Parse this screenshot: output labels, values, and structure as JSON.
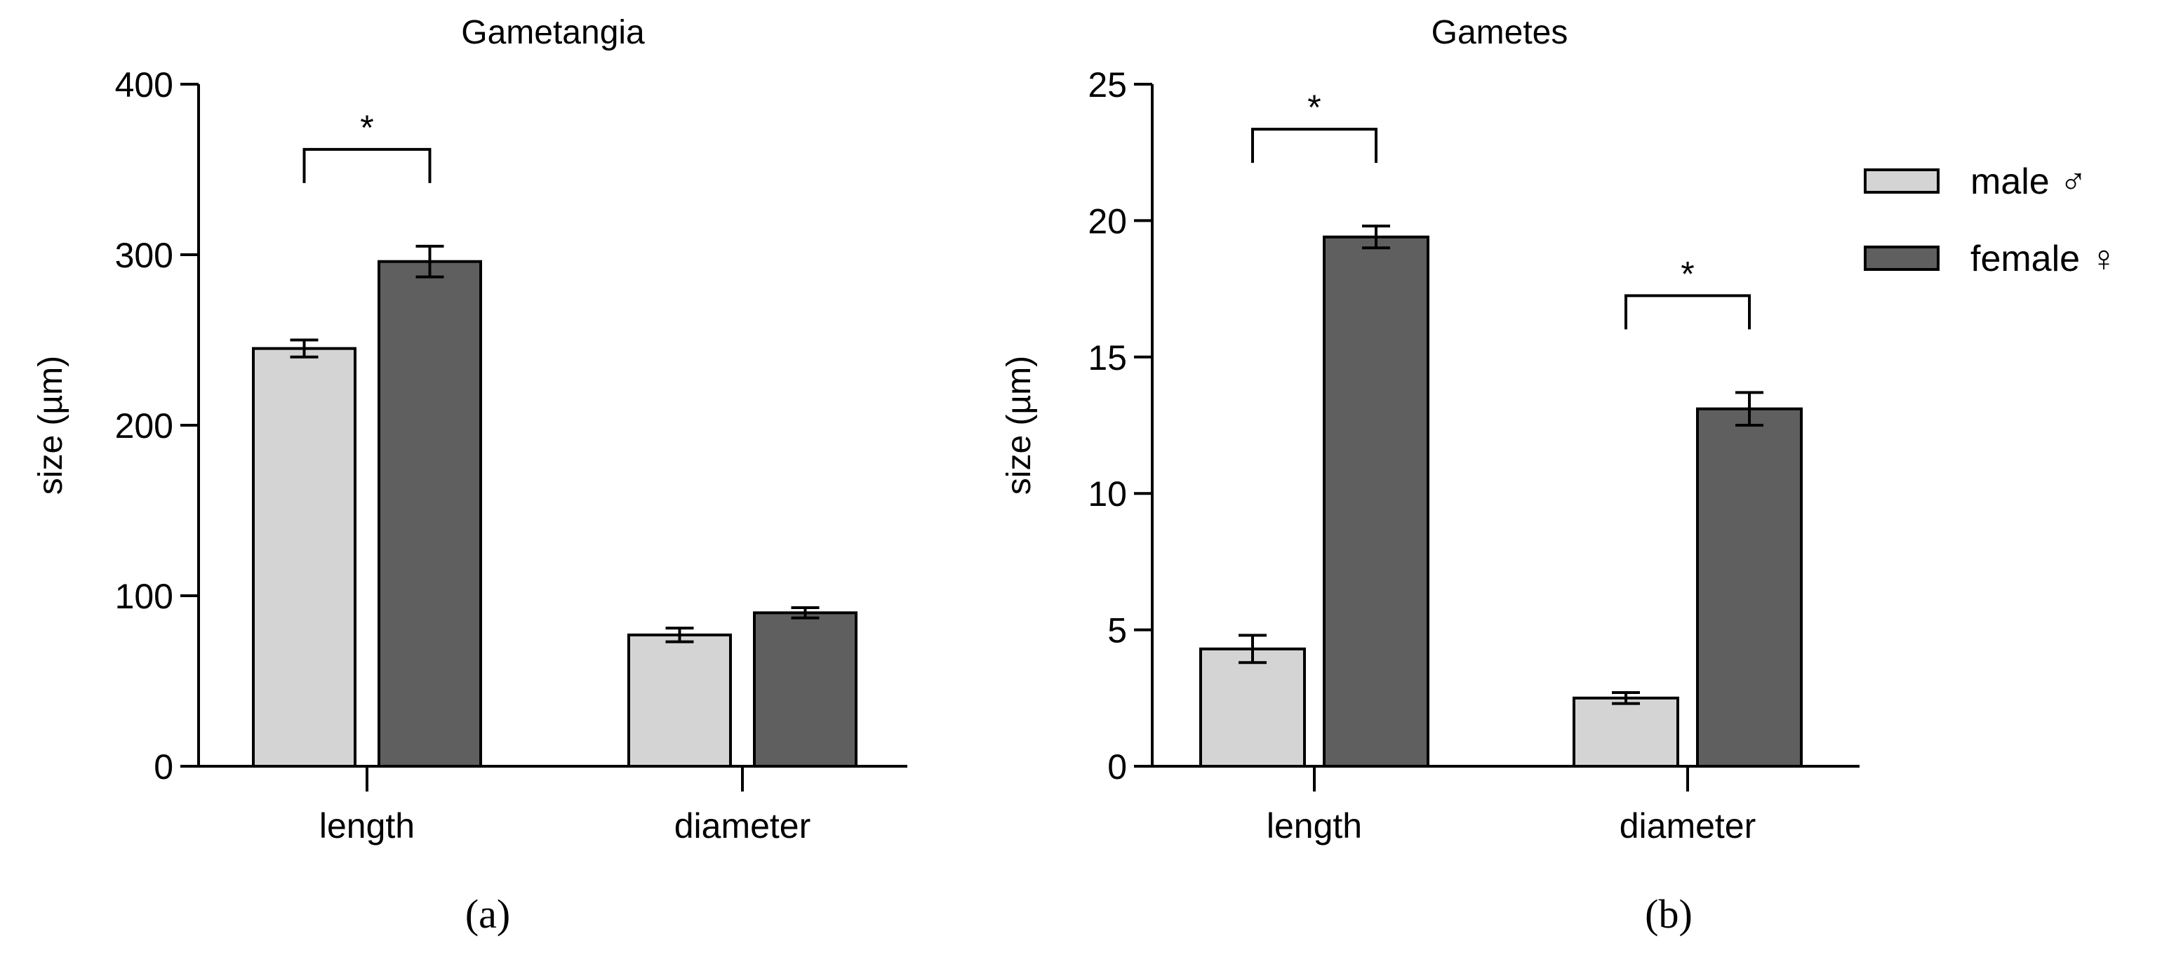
{
  "chart_data": [
    {
      "type": "bar",
      "panel_label": "(a)",
      "title": "Gametangia",
      "xlabel": "",
      "ylabel": "size (µm)",
      "ylim": [
        0,
        400
      ],
      "yticks": [
        0,
        100,
        200,
        300,
        400
      ],
      "categories": [
        "length",
        "diameter"
      ],
      "series": [
        {
          "name": "male ♂",
          "values": [
            245,
            77
          ],
          "errors": [
            5,
            4
          ]
        },
        {
          "name": "female ♀",
          "values": [
            296,
            90
          ],
          "errors": [
            9,
            3
          ]
        }
      ],
      "significance": [
        {
          "category_index": 0,
          "label": "*"
        }
      ]
    },
    {
      "type": "bar",
      "panel_label": "(b)",
      "title": "Gametes",
      "xlabel": "",
      "ylabel": "size (µm)",
      "ylim": [
        0,
        25
      ],
      "yticks": [
        0,
        5,
        10,
        15,
        20,
        25
      ],
      "categories": [
        "length",
        "diameter"
      ],
      "series": [
        {
          "name": "male ♂",
          "values": [
            4.3,
            2.5
          ],
          "errors": [
            0.5,
            0.2
          ]
        },
        {
          "name": "female ♀",
          "values": [
            19.4,
            13.1
          ],
          "errors": [
            0.4,
            0.6
          ]
        }
      ],
      "significance": [
        {
          "category_index": 0,
          "label": "*"
        },
        {
          "category_index": 1,
          "label": "*"
        }
      ],
      "legend_position": "right"
    }
  ],
  "colors": {
    "male": "#d4d4d4",
    "female": "#5f5f5f",
    "stroke": "#000000"
  }
}
